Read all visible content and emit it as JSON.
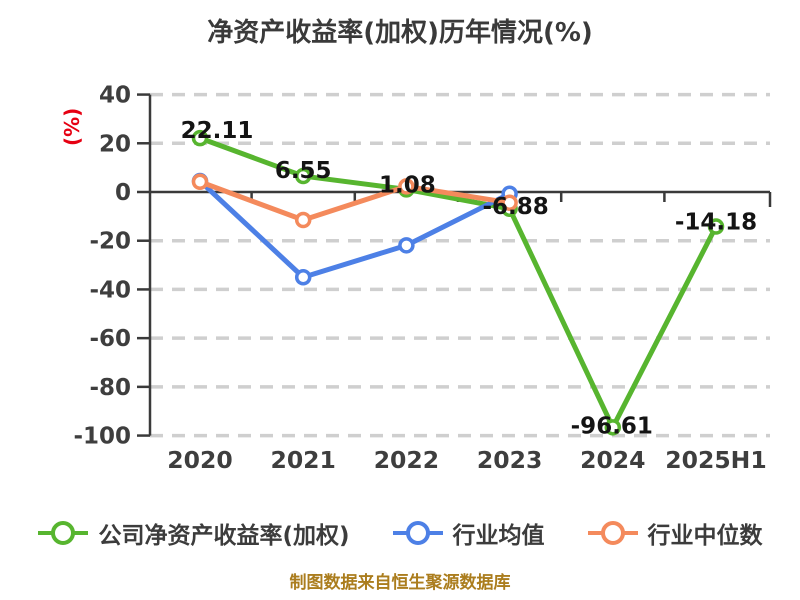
{
  "title": "净资产收益率(加权)历年情况(%)",
  "y_axis_unit": "(%)",
  "footer": "制图数据来自恒生聚源数据库",
  "colors": {
    "company_green": "#57b52f",
    "industry_avg_blue": "#4d80e6",
    "industry_median_orange": "#f48a5c",
    "grid_gray": "#cfcfcf",
    "axis_dark": "#3a3a3a",
    "tick_text": "#3e3e3e",
    "data_label_text": "#141414",
    "y_unit_red": "#e60012",
    "footer_gold": "#ab7d1e"
  },
  "chart_data": {
    "type": "line",
    "title": "净资产收益率(加权)历年情况(%)",
    "categories": [
      "2020",
      "2021",
      "2022",
      "2023",
      "2024",
      "2025H1"
    ],
    "series": [
      {
        "name": "公司净资产收益率(加权)",
        "color_key": "company_green",
        "values": [
          22.11,
          6.55,
          1.08,
          -6.88,
          -96.61,
          -14.18
        ],
        "labeled": true
      },
      {
        "name": "行业均值",
        "color_key": "industry_avg_blue",
        "values": [
          4.5,
          -35.0,
          -21.9,
          -0.7,
          null,
          null
        ],
        "labeled": false
      },
      {
        "name": "行业中位数",
        "color_key": "industry_median_orange",
        "values": [
          4.2,
          -11.5,
          2.3,
          -4.4,
          null,
          null
        ],
        "labeled": false
      }
    ],
    "data_labels": [
      "22.11",
      "6.55",
      "1.08",
      "-6.88",
      "-96.61",
      "-14.18"
    ],
    "y_ticks": [
      40,
      20,
      0,
      -20,
      -40,
      -60,
      -80,
      -100
    ],
    "ylim": [
      -100,
      40
    ],
    "xlabel": "",
    "ylabel": "(%)",
    "grid": "horizontal dashed",
    "zero_axis": "solid",
    "legend_position": "bottom"
  }
}
